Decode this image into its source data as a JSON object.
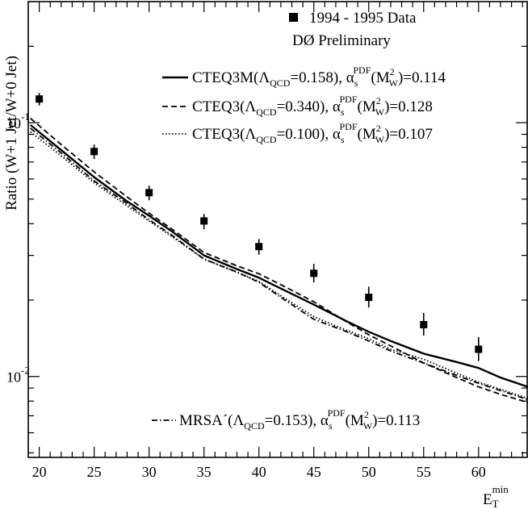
{
  "chart_data": {
    "type": "line",
    "xlabel": "E",
    "xlabel_sub": "T",
    "xlabel_sup": "min",
    "ylabel": "Ratio (W+1 Jet/W+0 Jet)",
    "yscale": "log",
    "xlim": [
      19,
      64.5
    ],
    "ylim": [
      0.0048,
      0.3
    ],
    "x_ticks": [
      20,
      25,
      30,
      35,
      40,
      45,
      50,
      55,
      60
    ],
    "y_major_ticks": [
      {
        "value": 0.1,
        "base": "10",
        "exp": "-1"
      },
      {
        "value": 0.01,
        "base": "10",
        "exp": "-2"
      }
    ],
    "legend_top": {
      "marker_label": "1994 - 1995 Data",
      "subtitle": "DØ Preliminary"
    },
    "data_series": {
      "name": "1994 - 1995 Data",
      "x": [
        20,
        25,
        30,
        35,
        40,
        45,
        50,
        55,
        60
      ],
      "y": [
        0.124,
        0.077,
        0.053,
        0.041,
        0.0325,
        0.0255,
        0.0205,
        0.016,
        0.0128
      ],
      "err_low": [
        0.117,
        0.072,
        0.0495,
        0.038,
        0.0302,
        0.0235,
        0.0187,
        0.0145,
        0.0115
      ],
      "err_high": [
        0.131,
        0.082,
        0.0565,
        0.0437,
        0.0348,
        0.0278,
        0.0226,
        0.0178,
        0.0143
      ]
    },
    "series": [
      {
        "name": "CTEQ3M",
        "label_parts": {
          "pre": "CTEQ3M(Λ",
          "lsub": "QCD",
          "lval": "=0.158), α",
          "asub": "s",
          "asup": "PDF",
          "m": "(M",
          "msup": "2",
          "msub": "W",
          "val": ")=0.114"
        },
        "style": "solid",
        "x": [
          19.2,
          22,
          25,
          28,
          30,
          32,
          35,
          38,
          40,
          42,
          45,
          48,
          50,
          52,
          55,
          58,
          60,
          62,
          64.5
        ],
        "y": [
          0.098,
          0.078,
          0.061,
          0.049,
          0.043,
          0.0375,
          0.03,
          0.0265,
          0.0245,
          0.0222,
          0.0192,
          0.0165,
          0.015,
          0.0138,
          0.0123,
          0.0114,
          0.0108,
          0.0099,
          0.0091
        ]
      },
      {
        "name": "CTEQ3 (0.340)",
        "label_parts": {
          "pre": "CTEQ3(Λ",
          "lsub": "QCD",
          "lval": "=0.340), α",
          "asub": "s",
          "asup": "PDF",
          "m": "(M",
          "msup": "2",
          "msub": "W",
          "val": ")=0.128"
        },
        "style": "dashed",
        "x": [
          19.2,
          22,
          25,
          28,
          30,
          32,
          35,
          38,
          40,
          42,
          45,
          48,
          50,
          52,
          55,
          58,
          60,
          62,
          64.5
        ],
        "y": [
          0.104,
          0.082,
          0.064,
          0.051,
          0.044,
          0.0383,
          0.0308,
          0.0273,
          0.0254,
          0.023,
          0.0197,
          0.0164,
          0.0146,
          0.0132,
          0.0113,
          0.0099,
          0.0091,
          0.0085,
          0.0079
        ]
      },
      {
        "name": "CTEQ3 (0.100)",
        "label_parts": {
          "pre": "CTEQ3(Λ",
          "lsub": "QCD",
          "lval": "=0.100), α",
          "asub": "s",
          "asup": "PDF",
          "m": "(M",
          "msup": "2",
          "msub": "W",
          "val": ")=0.107"
        },
        "style": "dotted",
        "x": [
          19.2,
          22,
          25,
          28,
          30,
          32,
          35,
          38,
          40,
          42,
          45,
          48,
          50,
          52,
          55,
          58,
          60,
          62,
          64.5
        ],
        "y": [
          0.092,
          0.074,
          0.058,
          0.047,
          0.041,
          0.0358,
          0.029,
          0.0257,
          0.0237,
          0.0208,
          0.0172,
          0.0152,
          0.0141,
          0.0128,
          0.0117,
          0.0103,
          0.0095,
          0.0089,
          0.0082
        ]
      },
      {
        "name": "MRSA'",
        "label_parts": {
          "pre": "MRSA´(Λ",
          "lsub": "QCD",
          "lval": "=0.153), α",
          "asub": "s",
          "asup": "PDF",
          "m": "(M",
          "msup": "2",
          "msub": "W",
          "val": ")=0.113"
        },
        "style": "dashdot",
        "x": [
          19.2,
          22,
          25,
          28,
          30,
          32,
          35,
          38,
          40,
          42,
          45,
          48,
          50,
          52,
          55,
          58,
          60,
          62,
          64.5
        ],
        "y": [
          0.095,
          0.076,
          0.059,
          0.048,
          0.0415,
          0.0362,
          0.029,
          0.0258,
          0.0235,
          0.0205,
          0.0168,
          0.015,
          0.0138,
          0.0126,
          0.0113,
          0.0101,
          0.0094,
          0.0088,
          0.0081
        ]
      }
    ],
    "grid": false
  }
}
